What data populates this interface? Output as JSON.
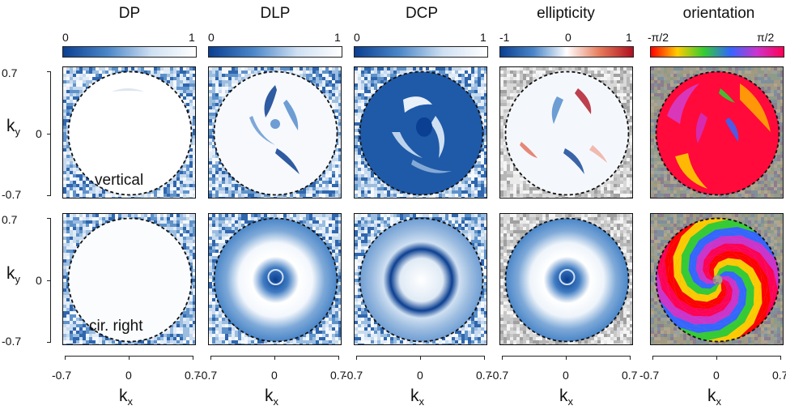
{
  "columns": [
    {
      "title": "DP",
      "colorbar": {
        "min": "0",
        "mid": "",
        "max": "1",
        "scheme": "sequential-blue"
      }
    },
    {
      "title": "DLP",
      "colorbar": {
        "min": "0",
        "mid": "",
        "max": "1",
        "scheme": "sequential-blue"
      }
    },
    {
      "title": "DCP",
      "colorbar": {
        "min": "0",
        "mid": "",
        "max": "1",
        "scheme": "sequential-blue"
      }
    },
    {
      "title": "ellipticity",
      "colorbar": {
        "min": "-1",
        "mid": "0",
        "max": "1",
        "scheme": "diverging-blue-red"
      }
    },
    {
      "title": "orientation",
      "colorbar": {
        "min": "-π/2",
        "mid": "",
        "max": "π/2",
        "scheme": "cyclic-rainbow"
      }
    }
  ],
  "rows": [
    {
      "label": "vertical"
    },
    {
      "label": "cir. right"
    }
  ],
  "axes": {
    "xlabel": "k",
    "xlabel_sub": "x",
    "ylabel": "k",
    "ylabel_sub": "y",
    "xticks": [
      "-0.7",
      "0",
      "0.7"
    ],
    "yticks": [
      "0.7",
      "0",
      "-0.7"
    ]
  },
  "colors": {
    "blue_dark": "#0b3f91",
    "blue_mid": "#4a86c8",
    "red_dark": "#b01020",
    "rainbow": [
      "#ff0000",
      "#ffcc00",
      "#33cc33",
      "#3366ff",
      "#cc33cc",
      "#ff0055"
    ]
  },
  "chart_data": {
    "type": "heatmap",
    "layout": "5 columns x 2 rows of k-space maps with dashed circular aperture",
    "xlim": [
      -0.7,
      0.7
    ],
    "ylim": [
      -0.7,
      0.7
    ],
    "panels": [
      {
        "row": "vertical",
        "column": "DP",
        "description_value": "near 1 (white) inside aperture"
      },
      {
        "row": "vertical",
        "column": "DLP",
        "description_value": "mostly 0, crescent lobes"
      },
      {
        "row": "vertical",
        "column": "DCP",
        "description_value": "mostly 1 (blue), bright lobes"
      },
      {
        "row": "vertical",
        "column": "ellipticity",
        "description_value": "near 0 with +/- lobes"
      },
      {
        "row": "vertical",
        "column": "orientation",
        "description_value": "mostly magenta-red"
      },
      {
        "row": "cir. right",
        "column": "DP",
        "description_value": "near 1 (white)"
      },
      {
        "row": "cir. right",
        "column": "DLP",
        "description_value": "center high, ring low"
      },
      {
        "row": "cir. right",
        "column": "DCP",
        "description_value": "dark ring"
      },
      {
        "row": "cir. right",
        "column": "ellipticity",
        "description_value": "center high, ring low"
      },
      {
        "row": "cir. right",
        "column": "orientation",
        "description_value": "spiral vortex pattern"
      }
    ]
  }
}
